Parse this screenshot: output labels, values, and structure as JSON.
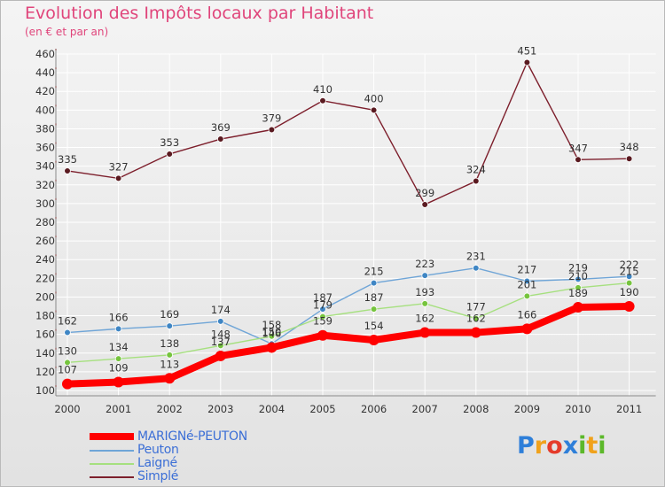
{
  "title": "Evolution des Impôts locaux par Habitant",
  "subtitle": "(en € et par an)",
  "colors": {
    "title": "#e0457b",
    "background": "#ececec",
    "grid": "#ffffff"
  },
  "logo": {
    "text": "Proxiti",
    "letters": [
      "P",
      "r",
      "o",
      "x",
      "i",
      "t",
      "i"
    ],
    "colors": [
      "#2e7fd9",
      "#f0a21c",
      "#e53b2a",
      "#2e7fd9",
      "#5cb82a",
      "#f0a21c",
      "#5cb82a"
    ]
  },
  "chart_data": {
    "type": "line",
    "title": "Evolution des Impôts locaux par Habitant",
    "subtitle": "(en € et par an)",
    "xlabel": "",
    "ylabel": "",
    "categories": [
      "2000",
      "2001",
      "2002",
      "2003",
      "2004",
      "2005",
      "2006",
      "2007",
      "2008",
      "2009",
      "2010",
      "2011"
    ],
    "ylim": [
      100,
      460
    ],
    "yticks": [
      100,
      120,
      140,
      160,
      180,
      200,
      220,
      240,
      260,
      280,
      300,
      320,
      340,
      360,
      380,
      400,
      420,
      440,
      460
    ],
    "grid": true,
    "legend_position": "bottom-left",
    "series": [
      {
        "name": "Simplé",
        "color": "#7d1f2c",
        "marker": "#5a1a20",
        "width": 1.4,
        "values": [
          335,
          327,
          353,
          369,
          379,
          410,
          400,
          299,
          324,
          451,
          347,
          348
        ],
        "labels": [
          "335",
          "327",
          "353",
          "369",
          "379",
          "410",
          "400",
          "299",
          "324",
          "451",
          "347",
          "348"
        ],
        "label_side": "above"
      },
      {
        "name": "Peuton",
        "color": "#6fa5d7",
        "marker": "#3f86c4",
        "width": 1.4,
        "values": [
          162,
          166,
          169,
          174,
          150,
          187,
          215,
          223,
          231,
          217,
          219,
          222
        ],
        "labels": [
          "162",
          "166",
          "169",
          "174",
          "150",
          "187",
          "215",
          "223",
          "231",
          "217",
          "219",
          "222"
        ],
        "label_side": "above"
      },
      {
        "name": "Laigné",
        "color": "#a6e07f",
        "marker": "#76c43e",
        "width": 1.4,
        "values": [
          130,
          134,
          138,
          148,
          158,
          179,
          187,
          193,
          177,
          201,
          210,
          215
        ],
        "labels": [
          "130",
          "134",
          "138",
          "148",
          "158",
          "179",
          "187",
          "193",
          "177",
          "201",
          "210",
          "215"
        ],
        "label_side": "above"
      },
      {
        "name": "MARIGNé-PEUTON",
        "color": "#ff0000",
        "marker": "#ff0000",
        "width": 8,
        "values": [
          107,
          109,
          113,
          137,
          146,
          159,
          154,
          162,
          162,
          166,
          189,
          190
        ],
        "labels": [
          "107",
          "109",
          "113",
          "137",
          "146",
          "159",
          "154",
          "162",
          "162",
          "166",
          "189",
          "190"
        ],
        "label_side": "above"
      }
    ]
  },
  "legend": {
    "items": [
      {
        "label": "MARIGNé-PEUTON",
        "color": "#ff0000",
        "thickness": 8
      },
      {
        "label": "Peuton",
        "color": "#6fa5d7",
        "thickness": 2
      },
      {
        "label": "Laigné",
        "color": "#a6e07f",
        "thickness": 2
      },
      {
        "label": "Simplé",
        "color": "#7d1f2c",
        "thickness": 2
      }
    ]
  }
}
